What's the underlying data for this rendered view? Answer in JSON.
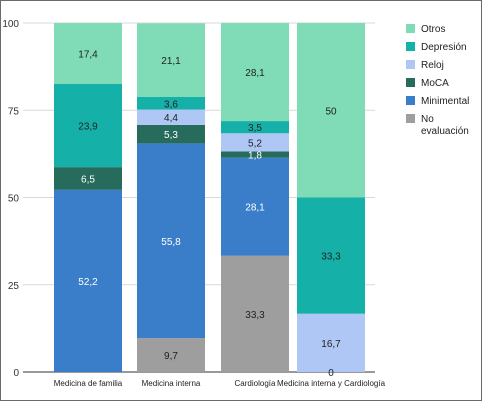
{
  "chart_data": {
    "type": "bar",
    "stacked": true,
    "title": "",
    "xlabel": "",
    "ylabel": "",
    "ylim": [
      0,
      100
    ],
    "yticks": [
      "0",
      "25",
      "50",
      "75",
      "100"
    ],
    "grid": true,
    "legend_position": "right",
    "categories": [
      "Medicina de familia",
      "Medicina interna",
      "Cardiología",
      "Medicina interna y Cardiología"
    ],
    "series": [
      {
        "name": "No evaluación",
        "color": "#9e9e9e",
        "values": [
          0,
          9.7,
          33.3,
          0
        ],
        "labels": [
          "",
          "9,7",
          "33,3",
          ""
        ]
      },
      {
        "name": "Minimental",
        "color": "#3a7dc9",
        "values": [
          52.2,
          55.8,
          28.1,
          0
        ],
        "labels": [
          "52,2",
          "55,8",
          "28,1",
          ""
        ]
      },
      {
        "name": "MoCA",
        "color": "#266b5c",
        "values": [
          6.5,
          5.3,
          1.8,
          0
        ],
        "labels": [
          "6,5",
          "5,3",
          "1,8",
          ""
        ]
      },
      {
        "name": "Reloj",
        "color": "#aec7f5",
        "values": [
          0,
          4.4,
          5.2,
          16.7
        ],
        "labels": [
          "",
          "4,4",
          "5,2",
          "16,7"
        ]
      },
      {
        "name": "Depresión",
        "color": "#15b0a8",
        "values": [
          23.9,
          3.6,
          3.5,
          33.3
        ],
        "labels": [
          "23,9",
          "3,6",
          "3,5",
          "33,3"
        ]
      },
      {
        "name": "Otros",
        "color": "#7fdcb6",
        "values": [
          17.4,
          21.1,
          28.1,
          50
        ],
        "labels": [
          "17,4",
          "21,1",
          "28,1",
          "50"
        ]
      }
    ],
    "legend_order": [
      "Otros",
      "Depresión",
      "Reloj",
      "MoCA",
      "Minimental",
      "No evaluación"
    ],
    "legend_lines": {
      "No evaluación": [
        "No",
        "evaluación"
      ]
    },
    "zero_label": {
      "category_index": 3,
      "text": "0"
    }
  }
}
